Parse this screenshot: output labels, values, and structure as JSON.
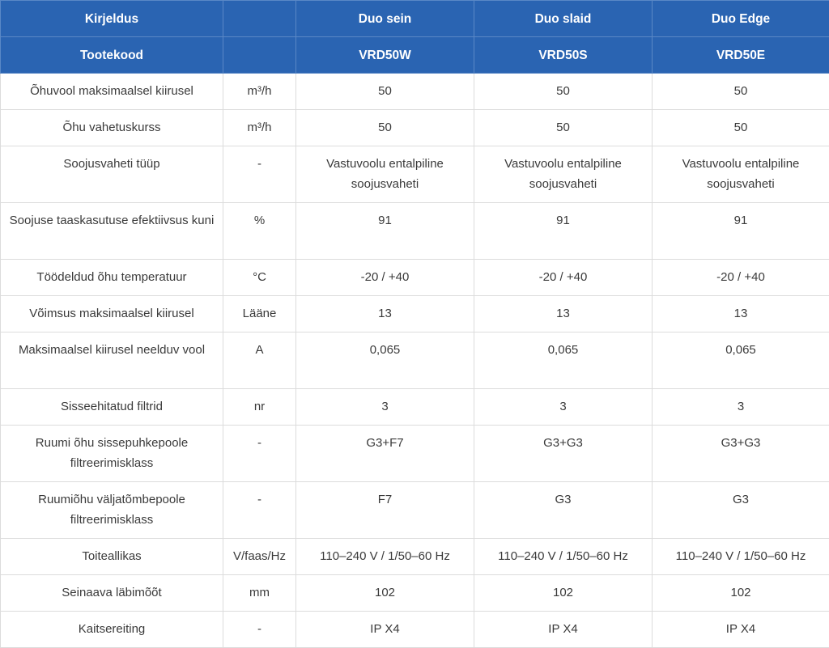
{
  "header": {
    "row1": [
      "Kirjeldus",
      "",
      "Duo sein",
      "Duo slaid",
      "Duo Edge"
    ],
    "row2": [
      "Tootekood",
      "",
      "VRD50W",
      "VRD50S",
      "VRD50E"
    ]
  },
  "rows": [
    {
      "label": "Õhuvool maksimaalsel kiirusel",
      "unit": "m³/h",
      "values": [
        "50",
        "50",
        "50"
      ]
    },
    {
      "label": "Õhu vahetuskurss",
      "unit": "m³/h",
      "values": [
        "50",
        "50",
        "50"
      ]
    },
    {
      "label": "Soojusvaheti tüüp",
      "unit": "-",
      "values": [
        "Vastuvoolu entalpiline soojusvaheti",
        "Vastuvoolu entalpiline soojusvaheti",
        "Vastuvoolu entalpiline soojusvaheti"
      ]
    },
    {
      "label": "Soojuse taaskasutuse efektiivsus kuni",
      "unit": "%",
      "values": [
        "91",
        "91",
        "91"
      ]
    },
    {
      "label": "Töödeldud õhu temperatuur",
      "unit": "°C",
      "values": [
        "-20 / +40",
        "-20 / +40",
        "-20 / +40"
      ]
    },
    {
      "label": "Võimsus maksimaalsel kiirusel",
      "unit": "Lääne",
      "values": [
        "13",
        "13",
        "13"
      ]
    },
    {
      "label": "Maksimaalsel kiirusel neelduv vool",
      "unit": "A",
      "values": [
        "0,065",
        "0,065",
        "0,065"
      ]
    },
    {
      "label": "Sisseehitatud filtrid",
      "unit": "nr",
      "values": [
        "3",
        "3",
        "3"
      ]
    },
    {
      "label": "Ruumi õhu sissepuhkepoole filtreerimisklass",
      "unit": "-",
      "values": [
        "G3+F7",
        "G3+G3",
        "G3+G3"
      ]
    },
    {
      "label": "Ruumiõhu väljatõmbepoole filtreerimisklass",
      "unit": "-",
      "values": [
        "F7",
        "G3",
        "G3"
      ]
    },
    {
      "label": "Toiteallikas",
      "unit": "V/faas/Hz",
      "values": [
        "110–240 V / 1/50–60 Hz",
        "110–240 V / 1/50–60 Hz",
        "110–240 V / 1/50–60 Hz"
      ]
    },
    {
      "label": "Seinaava läbimõõt",
      "unit": "mm",
      "values": [
        "102",
        "102",
        "102"
      ]
    },
    {
      "label": "Kaitsereiting",
      "unit": "-",
      "values": [
        "IP X4",
        "IP X4",
        "IP X4"
      ]
    }
  ]
}
